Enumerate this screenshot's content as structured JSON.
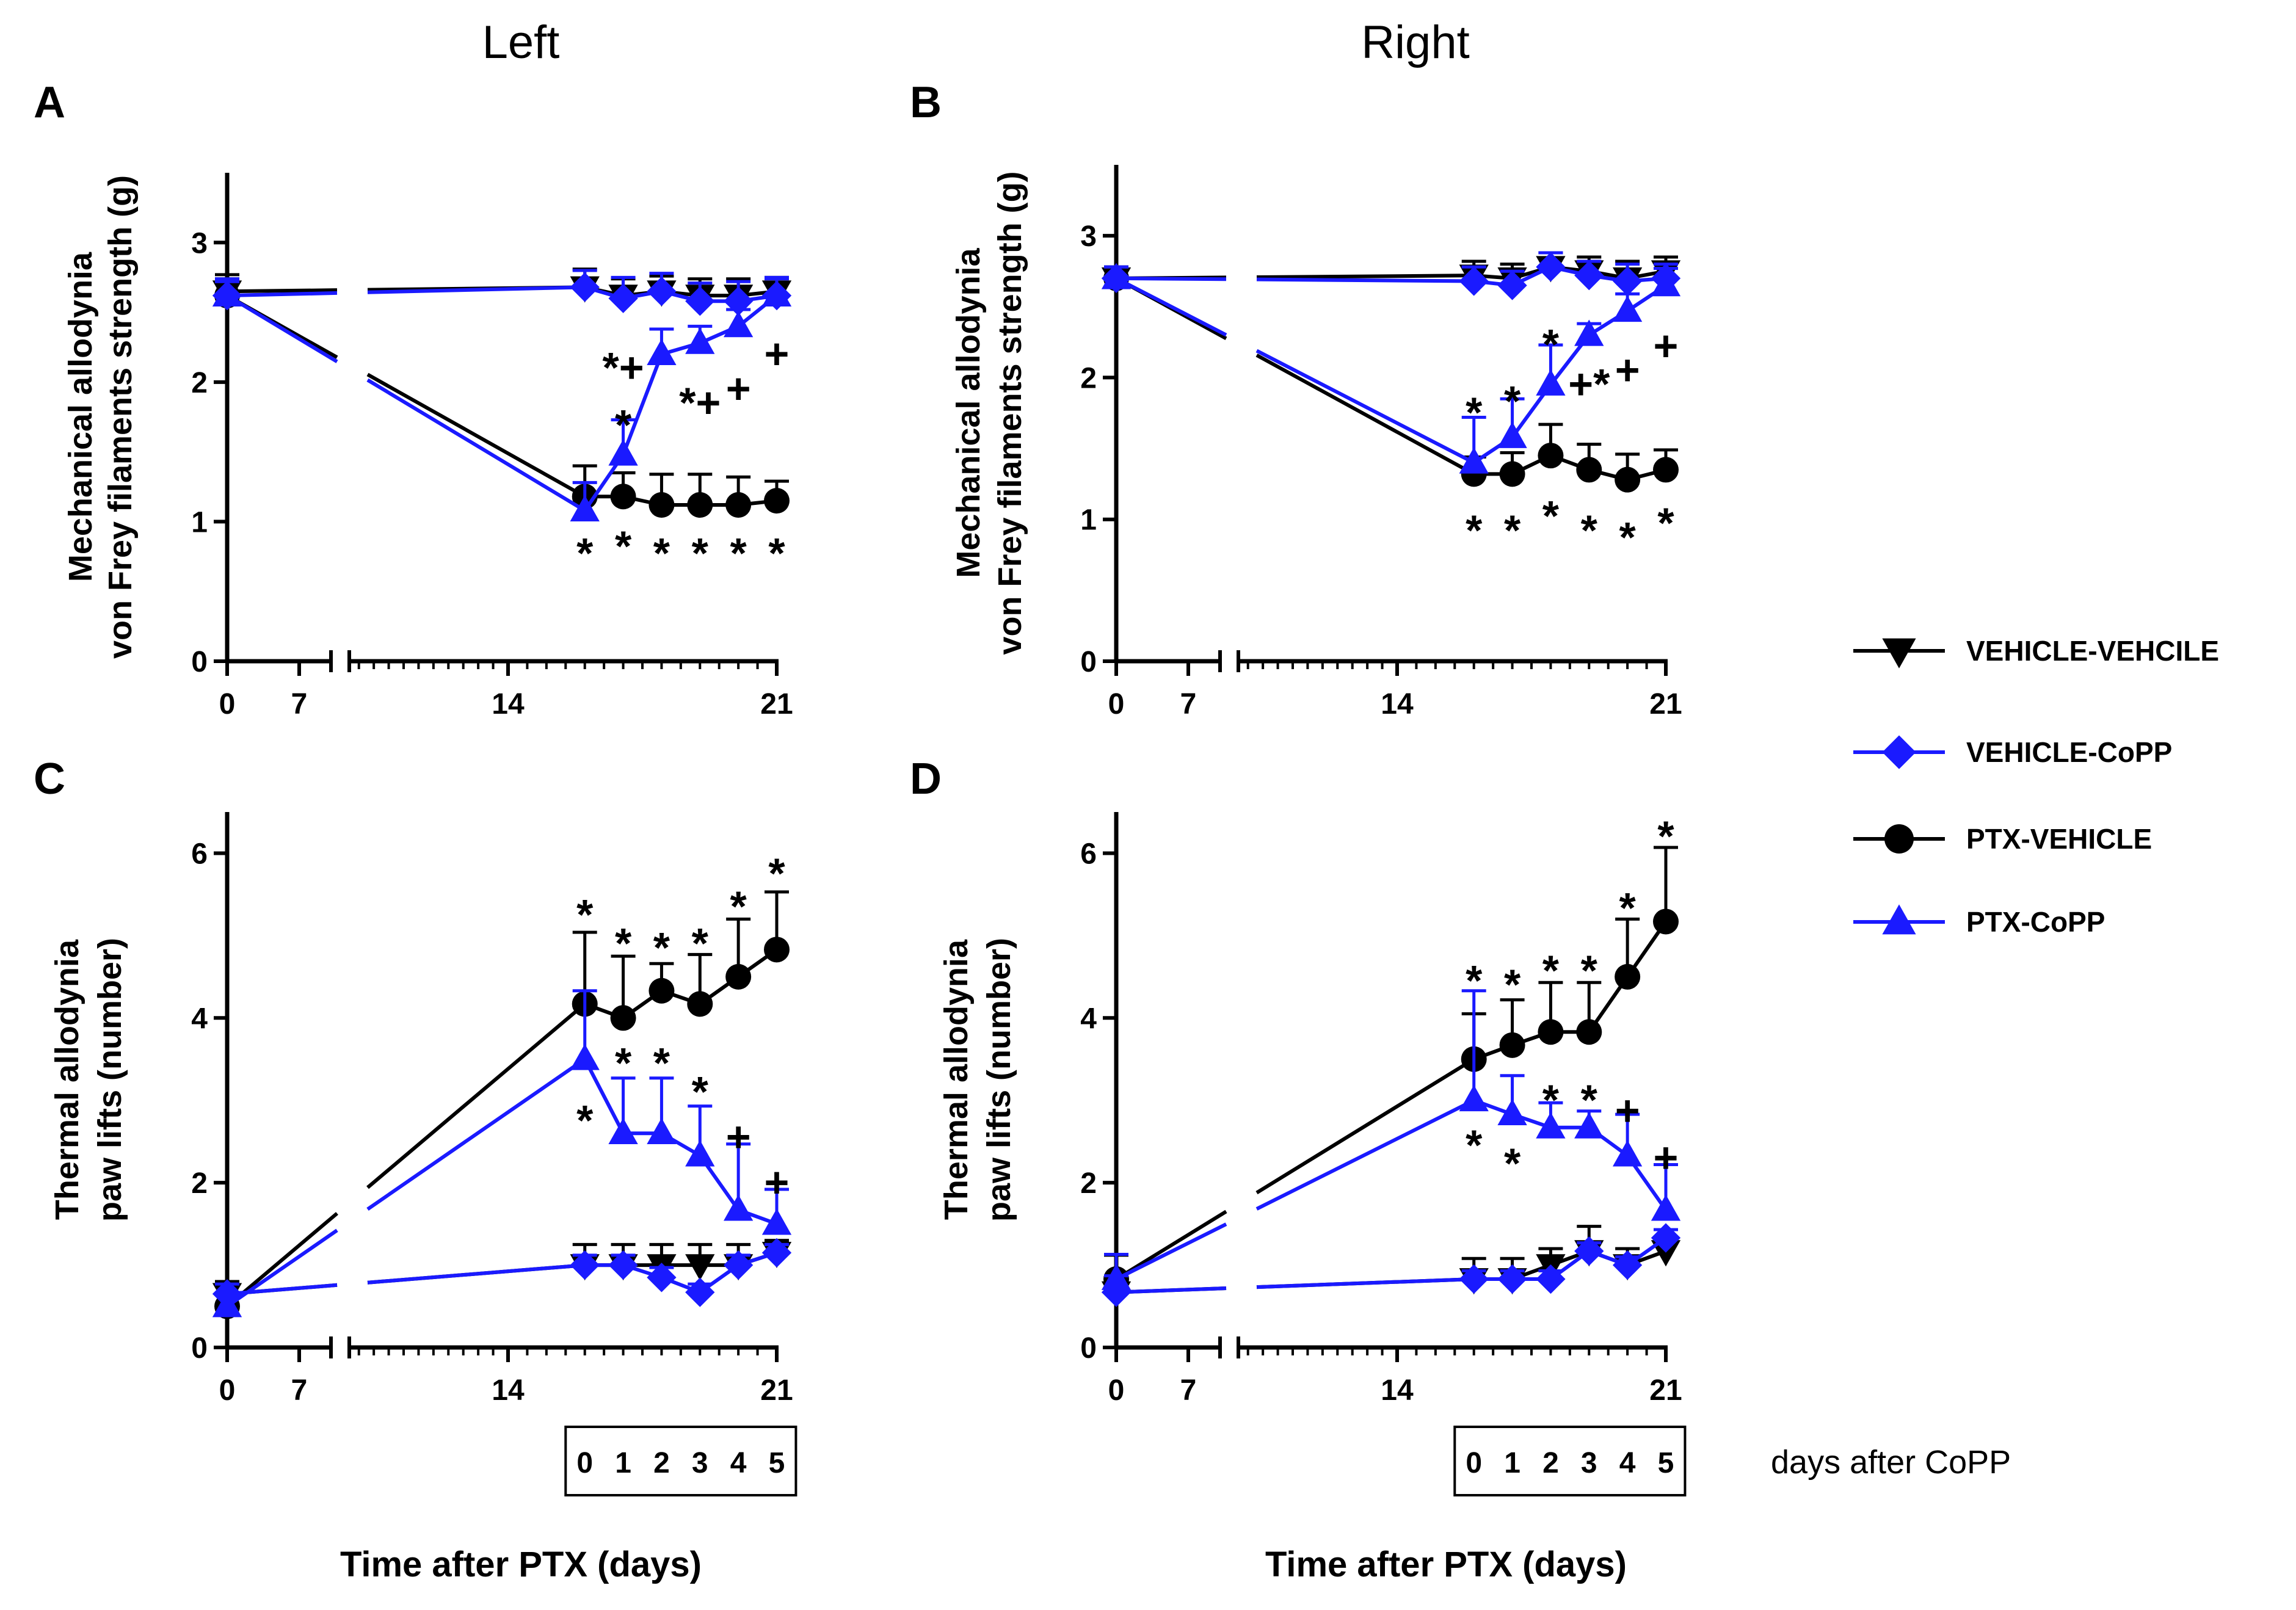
{
  "figure": {
    "column_titles": [
      "Left",
      "Right"
    ],
    "x_axis_title": "Time after PTX (days)",
    "box_caption": "days after CoPP",
    "box_labels": [
      "0",
      "1",
      "2",
      "3",
      "4",
      "5"
    ],
    "x_tick_labels": [
      "0",
      "7",
      "14",
      "21"
    ]
  },
  "legend": [
    {
      "name": "VEHICLE-VEHCILE",
      "marker": "triangle-down",
      "color": "#000000"
    },
    {
      "name": "VEHICLE-CoPP",
      "marker": "diamond",
      "color": "#1a1aff"
    },
    {
      "name": "PTX-VEHICLE",
      "marker": "circle",
      "color": "#000000"
    },
    {
      "name": "PTX-CoPP",
      "marker": "triangle-up",
      "color": "#1a1aff"
    }
  ],
  "chart_data": [
    {
      "panel": "A",
      "type": "line",
      "ylabel_lines": [
        "Mechanical allodynia",
        "von Frey filaments strength (g)"
      ],
      "ylim": [
        0,
        3.5
      ],
      "yticks": [
        0,
        1,
        2,
        3
      ],
      "y_tick_labels": [
        "0",
        "1",
        "2",
        "3"
      ],
      "x": [
        0,
        16,
        17,
        18,
        19,
        20,
        21
      ],
      "series": [
        {
          "name": "VEHICLE-VEHCILE",
          "values": [
            2.65,
            2.68,
            2.62,
            2.65,
            2.62,
            2.62,
            2.65
          ],
          "errors": [
            0.12,
            0.13,
            0.12,
            0.11,
            0.12,
            0.12,
            0.1
          ]
        },
        {
          "name": "VEHICLE-CoPP",
          "values": [
            2.62,
            2.68,
            2.6,
            2.65,
            2.58,
            2.58,
            2.62
          ],
          "errors": [
            0.1,
            0.12,
            0.15,
            0.13,
            0.13,
            0.14,
            0.13
          ]
        },
        {
          "name": "PTX-VEHICLE",
          "values": [
            2.62,
            1.18,
            1.18,
            1.12,
            1.12,
            1.12,
            1.15
          ],
          "errors": [
            0.12,
            0.22,
            0.17,
            0.22,
            0.22,
            0.2,
            0.14
          ]
        },
        {
          "name": "PTX-CoPP",
          "values": [
            2.62,
            1.08,
            1.48,
            2.2,
            2.28,
            2.4,
            2.62
          ],
          "errors": [
            0.12,
            0.2,
            0.25,
            0.18,
            0.12,
            0.12,
            0.12
          ]
        }
      ],
      "annotations": [
        {
          "x": 16,
          "y": 0.8,
          "text": "*"
        },
        {
          "x": 17,
          "y": 0.85,
          "text": "*"
        },
        {
          "x": 18,
          "y": 0.8,
          "text": "*"
        },
        {
          "x": 19,
          "y": 0.8,
          "text": "*"
        },
        {
          "x": 20,
          "y": 0.8,
          "text": "*"
        },
        {
          "x": 21,
          "y": 0.8,
          "text": "*"
        },
        {
          "x": 17,
          "y": 1.72,
          "text": "*"
        },
        {
          "x": 17,
          "y": 2.13,
          "text": "*+"
        },
        {
          "x": 19,
          "y": 1.88,
          "text": "*+"
        },
        {
          "x": 20,
          "y": 1.98,
          "text": "+"
        },
        {
          "x": 21,
          "y": 2.23,
          "text": "+"
        }
      ]
    },
    {
      "panel": "B",
      "type": "line",
      "ylabel_lines": [
        "Mechanical allodynia",
        "von Frey filaments strength (g)"
      ],
      "ylim": [
        0,
        3.5
      ],
      "yticks": [
        0,
        1,
        2,
        3
      ],
      "y_tick_labels": [
        "0",
        "1",
        "2",
        "3"
      ],
      "x": [
        0,
        16,
        17,
        18,
        19,
        20,
        21
      ],
      "series": [
        {
          "name": "VEHICLE-VEHCILE",
          "values": [
            2.7,
            2.72,
            2.7,
            2.78,
            2.75,
            2.7,
            2.75
          ],
          "errors": [
            0.08,
            0.1,
            0.1,
            0.1,
            0.1,
            0.12,
            0.1
          ]
        },
        {
          "name": "VEHICLE-CoPP",
          "values": [
            2.7,
            2.68,
            2.65,
            2.78,
            2.72,
            2.68,
            2.7
          ],
          "errors": [
            0.08,
            0.1,
            0.1,
            0.1,
            0.1,
            0.12,
            0.1
          ]
        },
        {
          "name": "PTX-VEHICLE",
          "values": [
            2.7,
            1.32,
            1.32,
            1.45,
            1.35,
            1.28,
            1.35
          ],
          "errors": [
            0.08,
            0.12,
            0.15,
            0.22,
            0.18,
            0.18,
            0.14
          ]
        },
        {
          "name": "PTX-CoPP",
          "values": [
            2.7,
            1.4,
            1.58,
            1.95,
            2.3,
            2.47,
            2.65
          ],
          "errors": [
            0.08,
            0.32,
            0.27,
            0.28,
            0.08,
            0.12,
            0.12
          ]
        }
      ],
      "annotations": [
        {
          "x": 16,
          "y": 0.95,
          "text": "*"
        },
        {
          "x": 17,
          "y": 0.95,
          "text": "*"
        },
        {
          "x": 18,
          "y": 1.05,
          "text": "*"
        },
        {
          "x": 19,
          "y": 0.95,
          "text": "*"
        },
        {
          "x": 20,
          "y": 0.9,
          "text": "*"
        },
        {
          "x": 21,
          "y": 1.0,
          "text": "*"
        },
        {
          "x": 16,
          "y": 1.78,
          "text": "*"
        },
        {
          "x": 17,
          "y": 1.86,
          "text": "*"
        },
        {
          "x": 18,
          "y": 2.26,
          "text": "*"
        },
        {
          "x": 19,
          "y": 1.98,
          "text": "+*"
        },
        {
          "x": 20,
          "y": 2.08,
          "text": "+"
        },
        {
          "x": 21,
          "y": 2.25,
          "text": "+"
        }
      ]
    },
    {
      "panel": "C",
      "type": "line",
      "ylabel_lines": [
        "Thermal allodynia",
        "paw lifts (number)"
      ],
      "ylim": [
        0,
        6.5
      ],
      "yticks": [
        0,
        2,
        4,
        6
      ],
      "y_tick_labels": [
        "0",
        "2",
        "4",
        "6"
      ],
      "x": [
        0,
        16,
        17,
        18,
        19,
        20,
        21
      ],
      "series": [
        {
          "name": "VEHICLE-VEHCILE",
          "values": [
            0.65,
            1.0,
            1.0,
            1.0,
            1.0,
            1.0,
            1.15
          ],
          "errors": [
            0.15,
            0.25,
            0.25,
            0.25,
            0.25,
            0.25,
            0.15
          ]
        },
        {
          "name": "VEHICLE-CoPP",
          "values": [
            0.65,
            1.0,
            1.0,
            0.85,
            0.67,
            1.0,
            1.15
          ],
          "errors": [
            0.12,
            0.12,
            0.12,
            0.12,
            0.1,
            0.12,
            0.1
          ]
        },
        {
          "name": "PTX-VEHICLE",
          "values": [
            0.5,
            4.17,
            4.0,
            4.33,
            4.17,
            4.5,
            4.83
          ],
          "errors": [
            0.15,
            0.87,
            0.75,
            0.33,
            0.6,
            0.7,
            0.7
          ]
        },
        {
          "name": "PTX-CoPP",
          "values": [
            0.5,
            3.5,
            2.6,
            2.6,
            2.33,
            1.67,
            1.5
          ],
          "errors": [
            0.15,
            0.83,
            0.67,
            0.67,
            0.6,
            0.8,
            0.42
          ]
        }
      ],
      "annotations": [
        {
          "x": 16,
          "y": 5.3,
          "text": "*"
        },
        {
          "x": 17,
          "y": 4.95,
          "text": "*"
        },
        {
          "x": 18,
          "y": 4.9,
          "text": "*"
        },
        {
          "x": 19,
          "y": 4.95,
          "text": "*"
        },
        {
          "x": 20,
          "y": 5.4,
          "text": "*"
        },
        {
          "x": 21,
          "y": 5.8,
          "text": "*"
        },
        {
          "x": 16,
          "y": 2.8,
          "text": "*"
        },
        {
          "x": 17,
          "y": 3.5,
          "text": "*"
        },
        {
          "x": 18,
          "y": 3.5,
          "text": "*"
        },
        {
          "x": 19,
          "y": 3.15,
          "text": "*"
        },
        {
          "x": 20,
          "y": 2.6,
          "text": "+"
        },
        {
          "x": 21,
          "y": 2.05,
          "text": "+"
        }
      ]
    },
    {
      "panel": "D",
      "type": "line",
      "ylabel_lines": [
        "Thermal allodynia",
        "paw lifts (number)"
      ],
      "ylim": [
        0,
        6.5
      ],
      "yticks": [
        0,
        2,
        4,
        6
      ],
      "y_tick_labels": [
        "0",
        "2",
        "4",
        "6"
      ],
      "x": [
        0,
        16,
        17,
        18,
        19,
        20,
        21
      ],
      "series": [
        {
          "name": "VEHICLE-VEHCILE",
          "values": [
            0.67,
            0.83,
            0.83,
            1.0,
            1.17,
            1.0,
            1.17
          ],
          "errors": [
            0.45,
            0.25,
            0.25,
            0.2,
            0.3,
            0.2,
            0.15
          ]
        },
        {
          "name": "VEHICLE-CoPP",
          "values": [
            0.67,
            0.83,
            0.83,
            0.83,
            1.17,
            1.0,
            1.33
          ],
          "errors": [
            0.2,
            0.1,
            0.1,
            0.1,
            0.1,
            0.1,
            0.1
          ]
        },
        {
          "name": "PTX-VEHICLE",
          "values": [
            0.83,
            3.5,
            3.67,
            3.83,
            3.83,
            4.5,
            5.17
          ],
          "errors": [
            0.3,
            0.55,
            0.55,
            0.6,
            0.6,
            0.7,
            0.9
          ]
        },
        {
          "name": "PTX-CoPP",
          "values": [
            0.83,
            3.0,
            2.83,
            2.67,
            2.67,
            2.33,
            1.67
          ],
          "errors": [
            0.3,
            1.33,
            0.47,
            0.3,
            0.2,
            0.5,
            0.55
          ]
        }
      ],
      "annotations": [
        {
          "x": 16,
          "y": 4.5,
          "text": "*"
        },
        {
          "x": 17,
          "y": 4.45,
          "text": "*"
        },
        {
          "x": 18,
          "y": 4.62,
          "text": "*"
        },
        {
          "x": 19,
          "y": 4.62,
          "text": "*"
        },
        {
          "x": 20,
          "y": 5.38,
          "text": "*"
        },
        {
          "x": 21,
          "y": 6.25,
          "text": "*"
        },
        {
          "x": 16,
          "y": 2.5,
          "text": "*"
        },
        {
          "x": 17,
          "y": 2.28,
          "text": "*"
        },
        {
          "x": 18,
          "y": 3.05,
          "text": "*"
        },
        {
          "x": 19,
          "y": 3.05,
          "text": "*"
        },
        {
          "x": 20,
          "y": 2.92,
          "text": "+"
        },
        {
          "x": 21,
          "y": 2.35,
          "text": "+"
        }
      ]
    }
  ]
}
